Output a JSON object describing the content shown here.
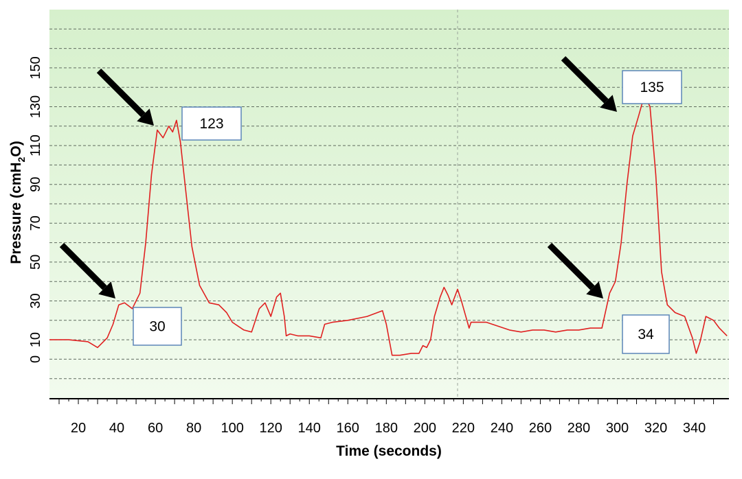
{
  "chart_data": {
    "type": "line",
    "title": "",
    "xlabel": "Time (seconds)",
    "ylabel": "Pressure (cmH₂O)",
    "ylabel_parts": [
      "Pressure (cmH",
      "2",
      "O)"
    ],
    "xlim": [
      5,
      358
    ],
    "ylim": [
      -20,
      180
    ],
    "x_ticks": [
      20,
      40,
      60,
      80,
      100,
      120,
      140,
      160,
      180,
      200,
      220,
      240,
      260,
      280,
      300,
      320,
      340
    ],
    "y_tick_labels": [
      0,
      10,
      30,
      50,
      70,
      90,
      110,
      130,
      150
    ],
    "gridlines_y": [
      -10,
      0,
      10,
      20,
      30,
      40,
      50,
      60,
      70,
      80,
      90,
      100,
      110,
      120,
      130,
      140,
      150,
      160,
      170
    ],
    "grid": "horizontal dashed",
    "series_color": "#e02020",
    "background_gradient": [
      "#d6f0cc",
      "#f2fbee"
    ],
    "series": [
      {
        "x": [
          5,
          15,
          25,
          30,
          35,
          38,
          41,
          44,
          48,
          52,
          55,
          58,
          61,
          64,
          67,
          69,
          71,
          73,
          76,
          79,
          83,
          88,
          93,
          97,
          100,
          103,
          106,
          110,
          114,
          117,
          120,
          123,
          125,
          127,
          128,
          130,
          134,
          140,
          146,
          148,
          152,
          160,
          170,
          178,
          180,
          183,
          187,
          193,
          197,
          199,
          201,
          203,
          205,
          208,
          210,
          212,
          214,
          217,
          219,
          221,
          223,
          224,
          228,
          232,
          238,
          244,
          250,
          256,
          262,
          268,
          274,
          280,
          286,
          292,
          296,
          299,
          302,
          305,
          308,
          311,
          313,
          315,
          317,
          320,
          323,
          326,
          330,
          335,
          339,
          341,
          343,
          346,
          350,
          353,
          357
        ],
        "y": [
          10,
          10,
          9,
          6,
          11,
          18,
          28,
          29,
          26,
          34,
          60,
          95,
          118,
          114,
          120,
          117,
          123,
          112,
          85,
          58,
          38,
          29,
          28,
          24,
          19,
          17,
          15,
          14,
          26,
          29,
          22,
          32,
          34,
          22,
          12,
          13,
          12,
          12,
          11,
          18,
          19,
          20,
          22,
          25,
          18,
          2,
          2,
          3,
          3,
          7,
          6,
          10,
          22,
          32,
          37,
          33,
          28,
          36,
          30,
          23,
          16,
          19,
          19,
          19,
          17,
          15,
          14,
          15,
          15,
          14,
          15,
          15,
          16,
          16,
          34,
          40,
          60,
          90,
          115,
          125,
          132,
          134,
          130,
          95,
          45,
          28,
          24,
          22,
          11,
          3,
          9,
          22,
          20,
          16,
          12
        ]
      }
    ],
    "annotations": [
      {
        "label": "123",
        "x": 71,
        "y": 123
      },
      {
        "label": "30",
        "x": 42,
        "y": 28
      },
      {
        "label": "135",
        "x": 313,
        "y": 134
      },
      {
        "label": "34",
        "x": 298,
        "y": 34
      }
    ]
  }
}
